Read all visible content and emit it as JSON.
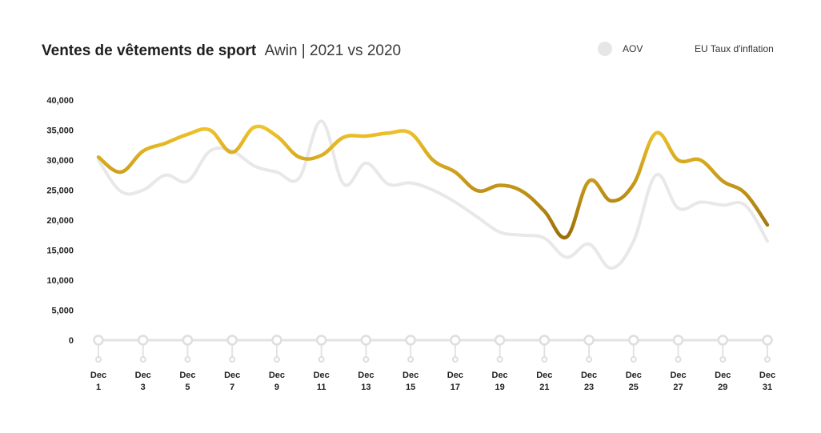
{
  "chart_data": {
    "type": "line",
    "title": "Ventes de vêtements de sport",
    "subtitle": "Awin | 2021 vs 2020",
    "xlabel": "",
    "ylabel": "",
    "ylim": [
      0,
      40000
    ],
    "yticks": [
      0,
      5000,
      10000,
      15000,
      20000,
      25000,
      30000,
      35000,
      40000
    ],
    "ytick_labels": [
      "0",
      "5,000",
      "10,000",
      "15,000",
      "20,000",
      "25,000",
      "30,000",
      "35,000",
      "40,000"
    ],
    "x": [
      1,
      2,
      3,
      4,
      5,
      6,
      7,
      8,
      9,
      10,
      11,
      12,
      13,
      14,
      15,
      16,
      17,
      18,
      19,
      20,
      21,
      22,
      23,
      24,
      25,
      26,
      27,
      28,
      29,
      30,
      31
    ],
    "xtick_values": [
      1,
      3,
      5,
      7,
      9,
      11,
      13,
      15,
      17,
      19,
      21,
      23,
      25,
      27,
      29,
      31
    ],
    "xtick_month": "Dec",
    "grid": false,
    "legend_position": "top-right",
    "series": [
      {
        "name": "AOV",
        "color": "#e8e8e8",
        "values": [
          30000,
          24800,
          25000,
          27500,
          26500,
          31500,
          31500,
          29000,
          28000,
          27000,
          36500,
          26000,
          29500,
          26000,
          26200,
          25000,
          23000,
          20500,
          18000,
          17500,
          17000,
          13800,
          16000,
          12000,
          16500,
          27500,
          22000,
          23000,
          22500,
          22500,
          16500
        ]
      },
      {
        "name": "EU Taux d'inflation",
        "color": "#d4a017",
        "values": [
          30500,
          28000,
          31500,
          32800,
          34300,
          35000,
          31300,
          35500,
          34000,
          30500,
          30800,
          33800,
          34000,
          34500,
          34500,
          30000,
          28000,
          24900,
          25800,
          24800,
          21500,
          17200,
          26500,
          23200,
          26000,
          34500,
          30000,
          30000,
          26500,
          24500,
          19200
        ]
      }
    ]
  }
}
